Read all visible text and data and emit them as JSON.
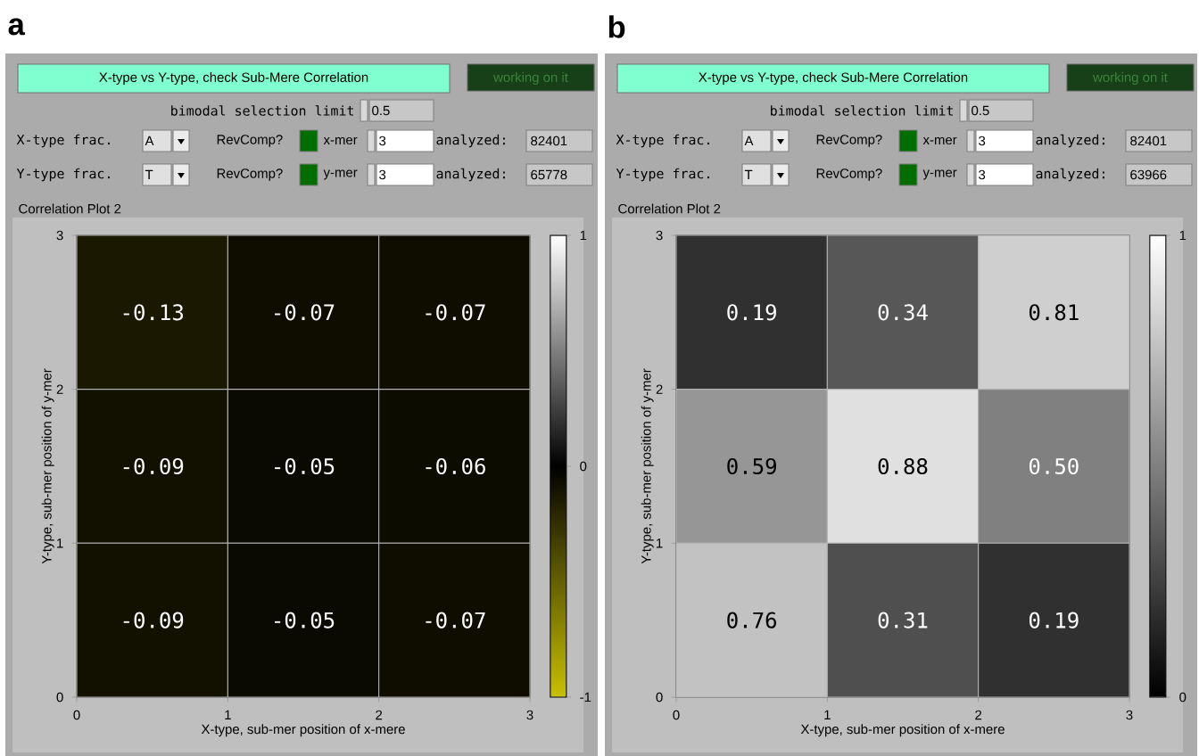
{
  "chart_data": [
    {
      "type": "heatmap",
      "title": "X-type vs Y-type, check Sub-Mere Correlation",
      "xlabel": "X-type, sub-mer position of x-mere",
      "ylabel": "Y-type, sub-mer position of y-mer",
      "annotations": [
        "a",
        "working on it",
        "bimodal selection limit",
        "0.5",
        "X-type frac.",
        "A",
        "RevComp?",
        "x-mer",
        "3",
        "analyzed:",
        "82401",
        "Y-type frac.",
        "T",
        "RevComp?",
        "y-mer",
        "3",
        "analyzed:",
        "65778",
        "Correlation Plot 2"
      ],
      "xlim": [
        0,
        3
      ],
      "ylim": [
        0,
        3
      ],
      "xticks": [
        0,
        1,
        2,
        3
      ],
      "yticks": [
        0,
        1,
        2,
        3
      ],
      "cells": [
        [
          -0.13,
          -0.07,
          -0.07
        ],
        [
          -0.09,
          -0.05,
          -0.06
        ],
        [
          -0.09,
          -0.05,
          -0.07
        ]
      ],
      "cell_labels": [
        [
          "-0.13",
          "-0.07",
          "-0.07"
        ],
        [
          "-0.09",
          "-0.05",
          "-0.06"
        ],
        [
          "-0.09",
          "-0.05",
          "-0.07"
        ]
      ],
      "clim": [
        -1,
        1
      ],
      "cticks": [
        -1,
        0,
        1
      ]
    },
    {
      "type": "heatmap",
      "title": "X-type vs Y-type, check Sub-Mere Correlation",
      "xlabel": "X-type, sub-mer position of x-mere",
      "ylabel": "Y-type, sub-mer position of y-mer",
      "annotations": [
        "b",
        "working on it",
        "bimodal selection limit",
        "0.5",
        "X-type frac.",
        "A",
        "RevComp?",
        "x-mer",
        "3",
        "analyzed:",
        "82401",
        "Y-type frac.",
        "T",
        "RevComp?",
        "y-mer",
        "3",
        "analyzed:",
        "63966",
        "Correlation Plot 2"
      ],
      "xlim": [
        0,
        3
      ],
      "ylim": [
        0,
        3
      ],
      "xticks": [
        0,
        1,
        2,
        3
      ],
      "yticks": [
        0,
        1,
        2,
        3
      ],
      "cells": [
        [
          0.19,
          0.34,
          0.81
        ],
        [
          0.59,
          0.88,
          0.5
        ],
        [
          0.76,
          0.31,
          0.19
        ]
      ],
      "cell_labels": [
        [
          "0.19",
          "0.34",
          "0.81"
        ],
        [
          "0.59",
          "0.88",
          "0.50"
        ],
        [
          "0.76",
          "0.31",
          "0.19"
        ]
      ],
      "clim": [
        0,
        1
      ],
      "cticks": [
        0,
        1
      ]
    }
  ]
}
